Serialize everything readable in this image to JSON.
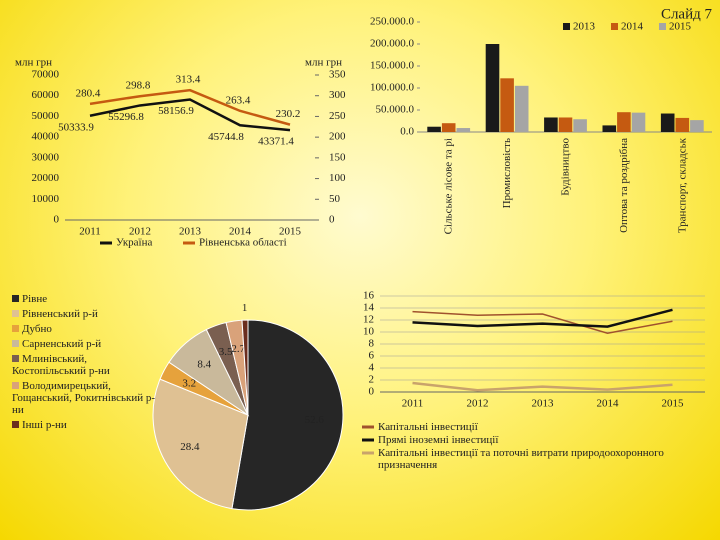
{
  "slide_label": "Слайд 7",
  "chart_data": [
    {
      "type": "line",
      "y_label": "млн грн",
      "y2_label": "млн грн",
      "categories": [
        "2011",
        "2012",
        "2013",
        "2014",
        "2015"
      ],
      "ylim": [
        0,
        70000
      ],
      "yticks": [
        0,
        10000,
        20000,
        30000,
        40000,
        50000,
        60000,
        70000
      ],
      "y2lim": [
        0,
        350
      ],
      "y2ticks": [
        0,
        50,
        100,
        150,
        200,
        250,
        300,
        350
      ],
      "series": [
        {
          "name": "Україна",
          "color": "#111111",
          "values": [
            50333.9,
            55296.8,
            58156.9,
            45744.8,
            43371.4
          ]
        },
        {
          "name": "Рівненська області",
          "color": "#c55a11",
          "axis": "y2",
          "values": [
            280.4,
            298.8,
            313.4,
            263.4,
            230.2
          ]
        }
      ]
    },
    {
      "type": "bar",
      "categories": [
        "Сільське лісове та рі",
        "Промисловість",
        "Будівництво",
        "Оптова та роздрібна",
        "Транспорт, складськ"
      ],
      "ylim": [
        0,
        250000
      ],
      "yticks": [
        {
          "value": 0,
          "label": "0.0"
        },
        {
          "value": 50000,
          "label": "50.000.0"
        },
        {
          "value": 100000,
          "label": "100.000.0"
        },
        {
          "value": 150000,
          "label": "150.000.0"
        },
        {
          "value": 200000,
          "label": "200.000.0"
        },
        {
          "value": 250000,
          "label": "250.000.0"
        }
      ],
      "series": [
        {
          "name": "2013",
          "color": "#1a1a1a",
          "values": [
            12000,
            200000,
            33000,
            15000,
            42000
          ]
        },
        {
          "name": "2014",
          "color": "#c55a11",
          "values": [
            20000,
            122000,
            33000,
            45000,
            32000
          ]
        },
        {
          "name": "2015",
          "color": "#a5a5a5",
          "values": [
            9000,
            105000,
            29000,
            44000,
            27000
          ]
        }
      ]
    },
    {
      "type": "pie",
      "categories": [
        "Рівне",
        "Рівненський р-й",
        "Дубно",
        "Сарненський р-й",
        "Млинівський, Костопільський р-ни",
        "Володимирецький, Гощанський, Рокитнівський р-ни",
        "Інші р-ни"
      ],
      "values": [
        52.6,
        28.4,
        3.2,
        8.4,
        3.5,
        2.7,
        1
      ],
      "colors": [
        "#262626",
        "#dfc193",
        "#e6a23c",
        "#c9b99b",
        "#7a5f50",
        "#d9a27a",
        "#6b2d1e"
      ]
    },
    {
      "type": "line",
      "categories": [
        "2011",
        "2012",
        "2013",
        "2014",
        "2015"
      ],
      "ylim": [
        0,
        16
      ],
      "yticks": [
        0,
        2,
        4,
        6,
        8,
        10,
        12,
        14,
        16
      ],
      "series": [
        {
          "name": "Капітальні інвестиції",
          "color": "#a0522d",
          "values": [
            13.4,
            12.8,
            13,
            9.8,
            11.8
          ]
        },
        {
          "name": "Прямі іноземні інвестиції",
          "color": "#111111",
          "values": [
            11.6,
            11,
            11.4,
            10.9,
            13.7
          ]
        },
        {
          "name": "Капітальні інвестиції та поточні витрати природоохоронного призначення",
          "color": "#c9a36b",
          "values": [
            1.5,
            0.3,
            0.9,
            0.4,
            1.2
          ]
        }
      ]
    }
  ]
}
